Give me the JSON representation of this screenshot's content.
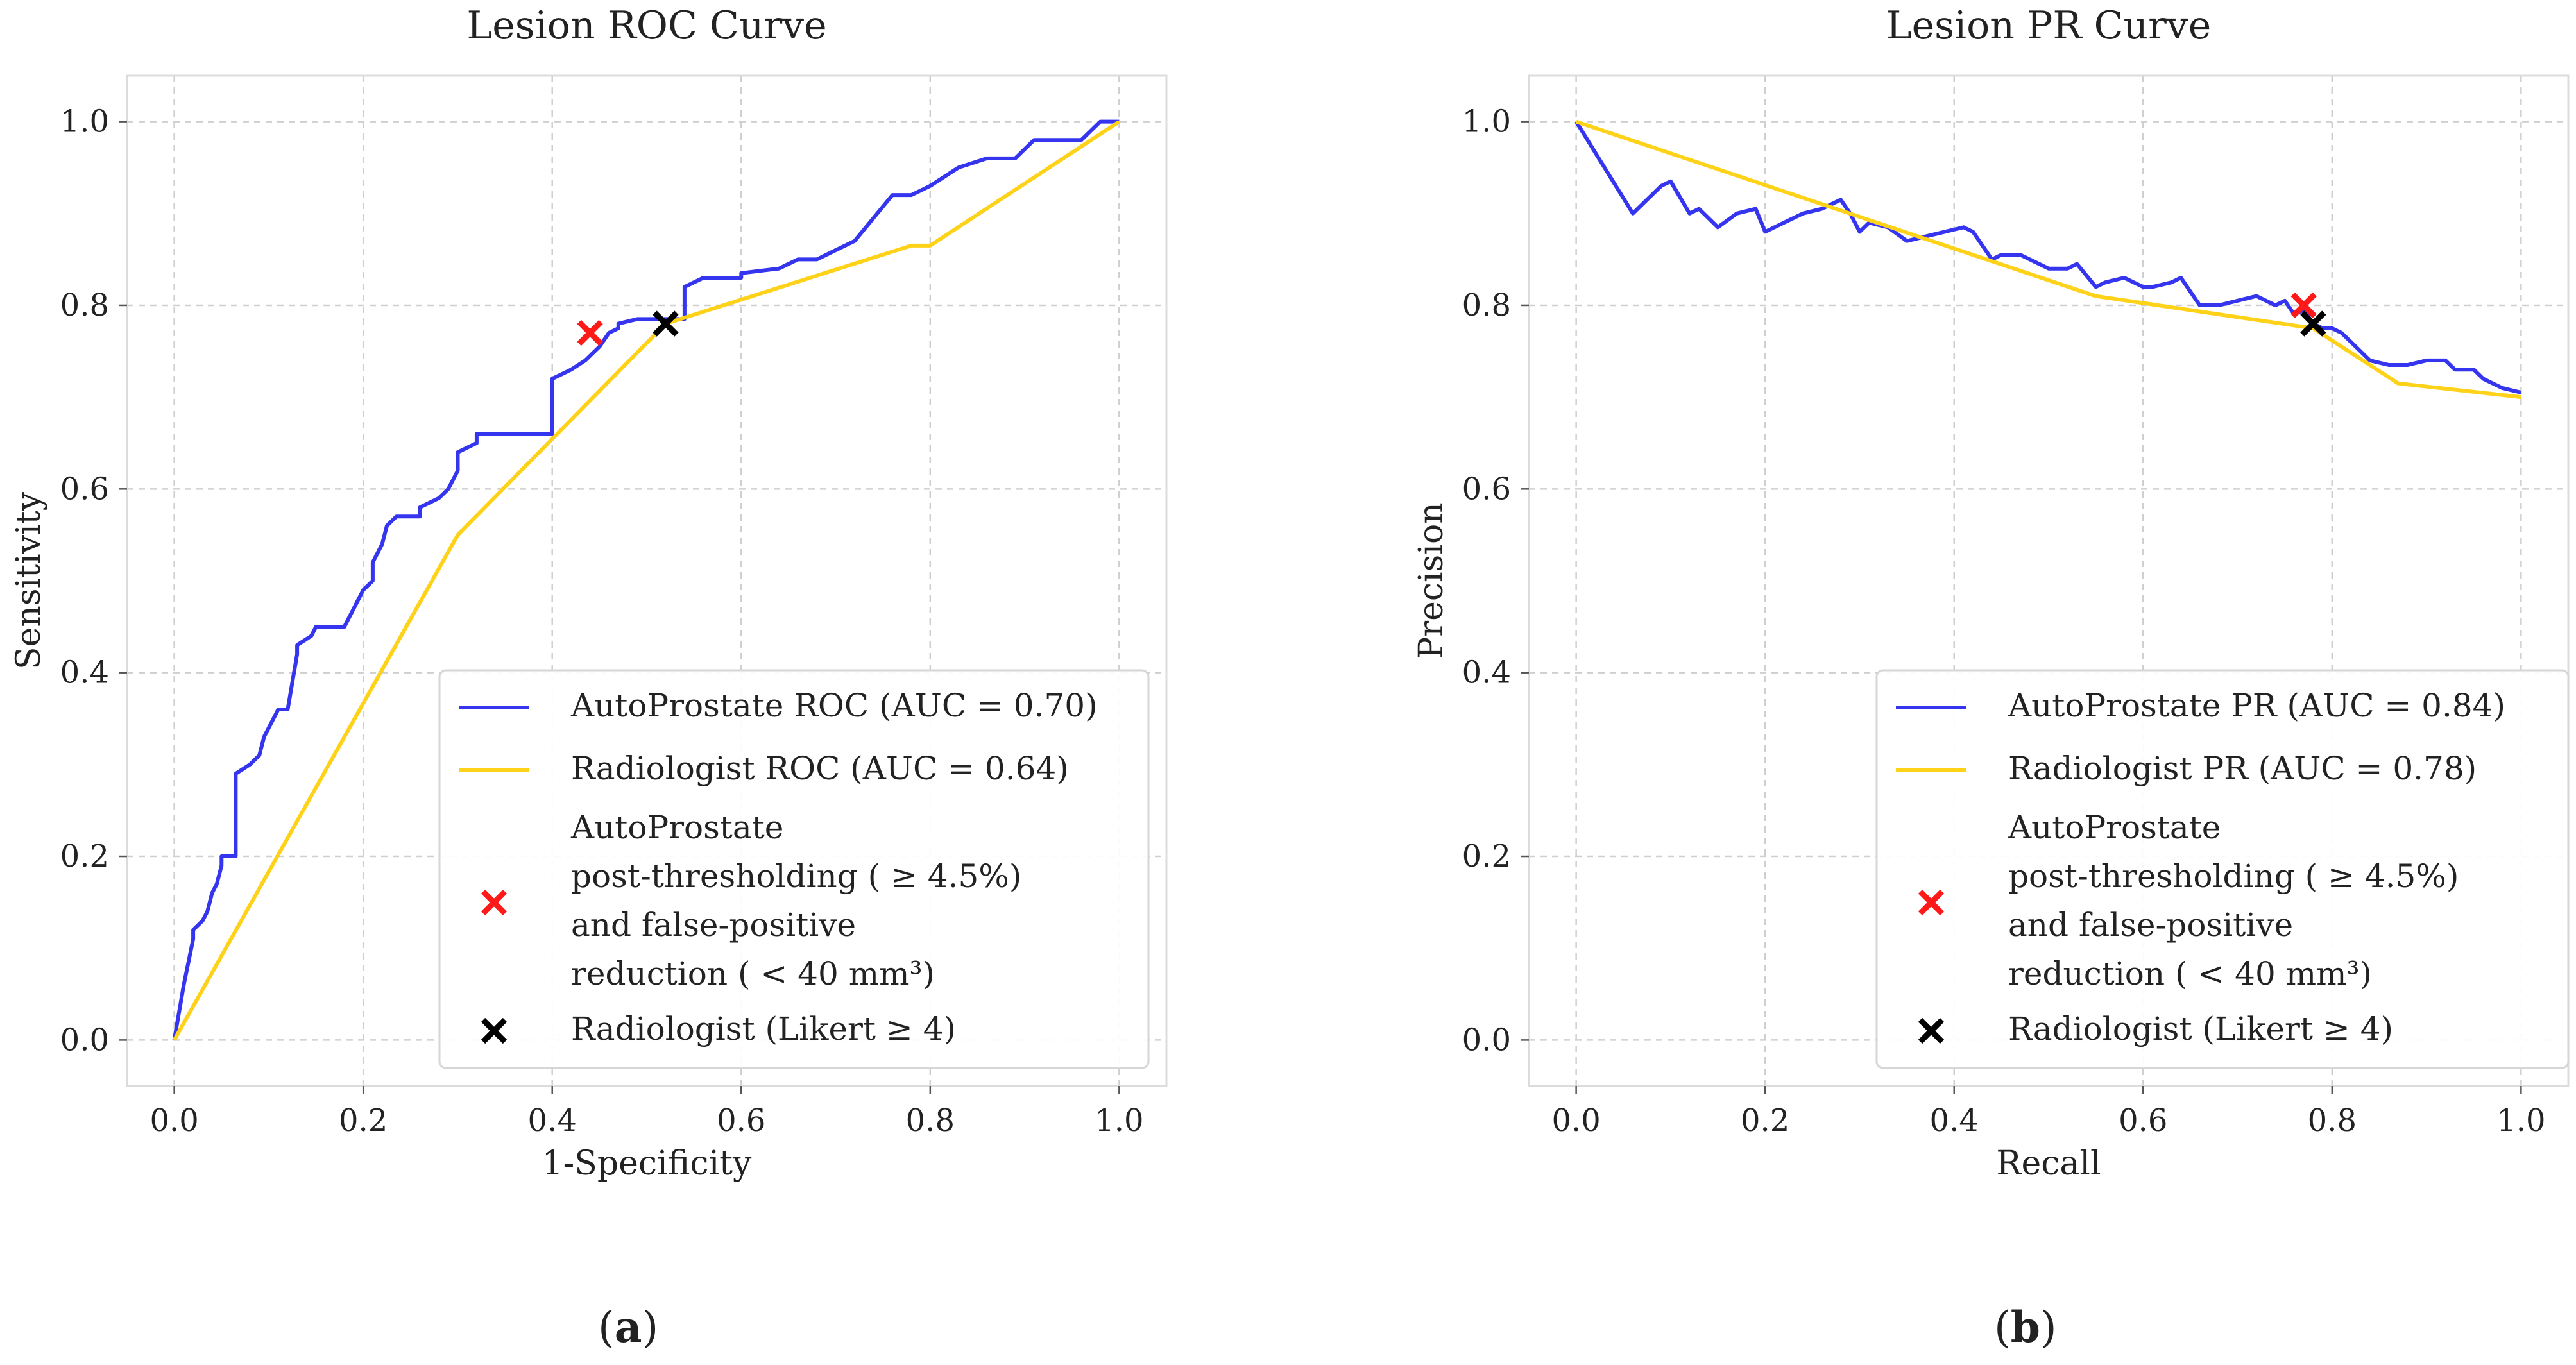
{
  "chart_data": [
    {
      "type": "line",
      "title": "Lesion ROC Curve",
      "xlabel": "1-Specificity",
      "ylabel": "Sensitivity",
      "xlim": [
        -0.05,
        1.05
      ],
      "ylim": [
        -0.05,
        1.05
      ],
      "xticks": [
        "0.0",
        "0.2",
        "0.4",
        "0.6",
        "0.8",
        "1.0"
      ],
      "yticks": [
        "0.0",
        "0.2",
        "0.4",
        "0.6",
        "0.8",
        "1.0"
      ],
      "grid": true,
      "legend_position": "lower-right",
      "series": [
        {
          "name": "AutoProstate ROC (AUC = 0.70)",
          "color": "#3535f0",
          "x": [
            0.0,
            0.01,
            0.02,
            0.02,
            0.03,
            0.035,
            0.04,
            0.045,
            0.05,
            0.05,
            0.065,
            0.065,
            0.08,
            0.085,
            0.09,
            0.095,
            0.1,
            0.11,
            0.12,
            0.13,
            0.13,
            0.145,
            0.15,
            0.16,
            0.18,
            0.195,
            0.2,
            0.21,
            0.21,
            0.22,
            0.225,
            0.235,
            0.24,
            0.26,
            0.26,
            0.28,
            0.29,
            0.3,
            0.3,
            0.32,
            0.32,
            0.35,
            0.38,
            0.4,
            0.4,
            0.42,
            0.435,
            0.45,
            0.46,
            0.47,
            0.47,
            0.49,
            0.52,
            0.54,
            0.54,
            0.56,
            0.58,
            0.59,
            0.6,
            0.6,
            0.64,
            0.65,
            0.66,
            0.67,
            0.68,
            0.7,
            0.72,
            0.76,
            0.78,
            0.8,
            0.83,
            0.86,
            0.89,
            0.9,
            0.91,
            0.93,
            0.95,
            0.96,
            0.97,
            0.98,
            0.99,
            1.0
          ],
          "y": [
            0.0,
            0.06,
            0.11,
            0.12,
            0.13,
            0.14,
            0.16,
            0.17,
            0.19,
            0.2,
            0.2,
            0.29,
            0.3,
            0.305,
            0.31,
            0.33,
            0.34,
            0.36,
            0.36,
            0.42,
            0.43,
            0.44,
            0.45,
            0.45,
            0.45,
            0.48,
            0.49,
            0.5,
            0.52,
            0.54,
            0.56,
            0.57,
            0.57,
            0.57,
            0.58,
            0.59,
            0.6,
            0.62,
            0.64,
            0.65,
            0.66,
            0.66,
            0.66,
            0.66,
            0.72,
            0.73,
            0.74,
            0.755,
            0.77,
            0.775,
            0.78,
            0.785,
            0.785,
            0.785,
            0.82,
            0.83,
            0.83,
            0.83,
            0.83,
            0.835,
            0.84,
            0.845,
            0.85,
            0.85,
            0.85,
            0.86,
            0.87,
            0.92,
            0.92,
            0.93,
            0.95,
            0.96,
            0.96,
            0.97,
            0.98,
            0.98,
            0.98,
            0.98,
            0.99,
            1.0,
            1.0,
            1.0
          ]
        },
        {
          "name": "Radiologist ROC (AUC = 0.64)",
          "color": "#ffd21a",
          "x": [
            0.0,
            0.3,
            0.52,
            0.78,
            0.8,
            1.0
          ],
          "y": [
            0.0,
            0.55,
            0.78,
            0.865,
            0.865,
            1.0
          ]
        }
      ],
      "markers": [
        {
          "name": "AutoProstate post-thresholding ( ≥ 4.5%) and false-positive reduction ( < 40 mm³)",
          "color": "#ff1a1a",
          "x": 0.44,
          "y": 0.77
        },
        {
          "name": "Radiologist (Likert ≥ 4)",
          "color": "#000000",
          "x": 0.52,
          "y": 0.78
        }
      ],
      "legend": [
        {
          "label": "AutoProstate ROC (AUC = 0.70)",
          "kind": "line",
          "color": "#3535f0"
        },
        {
          "label": "Radiologist ROC (AUC = 0.64)",
          "kind": "line",
          "color": "#ffd21a"
        },
        {
          "lines": [
            "AutoProstate",
            "post-thresholding ( ≥ 4.5%)",
            "and false-positive",
            "reduction ( < 40 mm³)"
          ],
          "kind": "marker",
          "color": "#ff1a1a"
        },
        {
          "label": "Radiologist (Likert ≥ 4)",
          "kind": "marker",
          "color": "#000000"
        }
      ]
    },
    {
      "type": "line",
      "title": "Lesion PR Curve",
      "xlabel": "Recall",
      "ylabel": "Precision",
      "xlim": [
        -0.05,
        1.05
      ],
      "ylim": [
        -0.05,
        1.05
      ],
      "xticks": [
        "0.0",
        "0.2",
        "0.4",
        "0.6",
        "0.8",
        "1.0"
      ],
      "yticks": [
        "0.0",
        "0.2",
        "0.4",
        "0.6",
        "0.8",
        "1.0"
      ],
      "grid": true,
      "legend_position": "lower-right",
      "series": [
        {
          "name": "AutoProstate PR (AUC = 0.84)",
          "color": "#3535f0",
          "x": [
            0.0,
            0.03,
            0.06,
            0.09,
            0.1,
            0.12,
            0.13,
            0.15,
            0.17,
            0.19,
            0.2,
            0.22,
            0.24,
            0.26,
            0.27,
            0.28,
            0.29,
            0.3,
            0.31,
            0.33,
            0.35,
            0.37,
            0.39,
            0.41,
            0.42,
            0.44,
            0.45,
            0.47,
            0.49,
            0.5,
            0.52,
            0.53,
            0.55,
            0.56,
            0.58,
            0.6,
            0.61,
            0.63,
            0.64,
            0.66,
            0.68,
            0.7,
            0.72,
            0.74,
            0.75,
            0.76,
            0.77,
            0.78,
            0.79,
            0.8,
            0.81,
            0.82,
            0.83,
            0.84,
            0.86,
            0.88,
            0.9,
            0.92,
            0.93,
            0.95,
            0.96,
            0.98,
            1.0
          ],
          "y": [
            1.0,
            0.95,
            0.9,
            0.93,
            0.935,
            0.9,
            0.905,
            0.885,
            0.9,
            0.905,
            0.88,
            0.89,
            0.9,
            0.905,
            0.91,
            0.915,
            0.9,
            0.88,
            0.89,
            0.885,
            0.87,
            0.875,
            0.88,
            0.885,
            0.88,
            0.85,
            0.855,
            0.855,
            0.845,
            0.84,
            0.84,
            0.845,
            0.82,
            0.825,
            0.83,
            0.82,
            0.82,
            0.825,
            0.83,
            0.8,
            0.8,
            0.805,
            0.81,
            0.8,
            0.805,
            0.79,
            0.795,
            0.78,
            0.775,
            0.775,
            0.77,
            0.76,
            0.75,
            0.74,
            0.735,
            0.735,
            0.74,
            0.74,
            0.73,
            0.73,
            0.72,
            0.71,
            0.705
          ]
        },
        {
          "name": "Radiologist PR (AUC = 0.78)",
          "color": "#ffd21a",
          "x": [
            0.0,
            0.55,
            0.78,
            0.87,
            1.0
          ],
          "y": [
            1.0,
            0.81,
            0.775,
            0.715,
            0.7
          ]
        }
      ],
      "markers": [
        {
          "name": "AutoProstate post-thresholding ( ≥ 4.5%) and false-positive reduction ( < 40 mm³)",
          "color": "#ff1a1a",
          "x": 0.77,
          "y": 0.8
        },
        {
          "name": "Radiologist (Likert ≥ 4)",
          "color": "#000000",
          "x": 0.78,
          "y": 0.78
        }
      ],
      "legend": [
        {
          "label": "AutoProstate PR (AUC = 0.84)",
          "kind": "line",
          "color": "#3535f0"
        },
        {
          "label": "Radiologist PR (AUC = 0.78)",
          "kind": "line",
          "color": "#ffd21a"
        },
        {
          "lines": [
            "AutoProstate",
            "post-thresholding ( ≥ 4.5%)",
            "and false-positive",
            "reduction ( < 40 mm³)"
          ],
          "kind": "marker",
          "color": "#ff1a1a"
        },
        {
          "label": "Radiologist (Likert ≥ 4)",
          "kind": "marker",
          "color": "#000000"
        }
      ]
    }
  ],
  "panel_labels": {
    "a": {
      "open": "(",
      "letter": "a",
      "close": ")"
    },
    "b": {
      "open": "(",
      "letter": "b",
      "close": ")"
    }
  }
}
